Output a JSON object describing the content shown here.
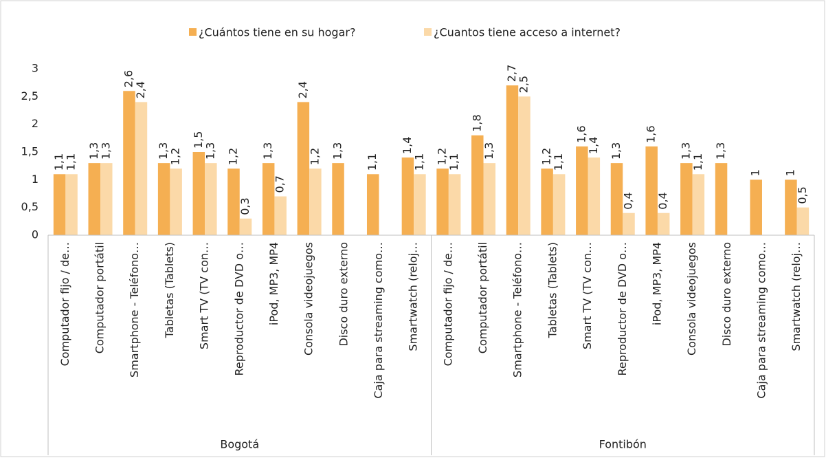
{
  "chart_data": {
    "type": "bar",
    "groups": [
      "Bogotá",
      "Fontibón"
    ],
    "categories": [
      "Computador fijo / de…",
      "Computador portátil",
      "Smartphone - Teléfono…",
      "Tabletas (Tablets)",
      "Smart TV (TV con…",
      "Reproductor de DVD o…",
      "iPod, MP3, MP4",
      "Consola videojuegos",
      "Disco duro externo",
      "Caja para streaming como…",
      "Smartwatch (reloj…",
      "Computador fijo / de…",
      "Computador portátil",
      "Smartphone - Teléfono…",
      "Tabletas (Tablets)",
      "Smart TV (TV con…",
      "Reproductor de DVD o…",
      "iPod, MP3, MP4",
      "Consola videojuegos",
      "Disco duro externo",
      "Caja para streaming como…",
      "Smartwatch (reloj…"
    ],
    "series": [
      {
        "name": "¿Cuántos tiene en su hogar?",
        "color": "#F5AF52",
        "values": [
          1.1,
          1.3,
          2.6,
          1.3,
          1.5,
          1.2,
          1.3,
          2.4,
          1.3,
          1.1,
          1.4,
          1.2,
          1.8,
          2.7,
          1.2,
          1.6,
          1.3,
          1.6,
          1.3,
          1.3,
          1,
          1
        ],
        "value_labels": [
          "1,1",
          "1,3",
          "2,6",
          "1,3",
          "1,5",
          "1,2",
          "1,3",
          "2,4",
          "1,3",
          "1,1",
          "1,4",
          "1,2",
          "1,8",
          "2,7",
          "1,2",
          "1,6",
          "1,3",
          "1,6",
          "1,3",
          "1,3",
          "1",
          "1"
        ]
      },
      {
        "name": "¿Cuantos tiene acceso a internet?",
        "color": "#FBD9A8",
        "values": [
          1.1,
          1.3,
          2.4,
          1.2,
          1.3,
          0.3,
          0.7,
          1.2,
          null,
          null,
          1.1,
          1.1,
          1.3,
          2.5,
          1.1,
          1.4,
          0.4,
          0.4,
          1.1,
          null,
          null,
          0.5
        ],
        "value_labels": [
          "1,1",
          "1,3",
          "2,4",
          "1,2",
          "1,3",
          "0,3",
          "0,7",
          "1,2",
          null,
          null,
          "1,1",
          "1,1",
          "1,3",
          "2,5",
          "1,1",
          "1,4",
          "0,4",
          "0,4",
          "1,1",
          null,
          null,
          "0,5"
        ]
      }
    ],
    "ylim": [
      0,
      3
    ],
    "yticks": [
      0,
      {
        "value": 0.5,
        "label": "0,5"
      },
      1,
      {
        "value": 1.5,
        "label": "1,5"
      },
      2,
      {
        "value": 2.5,
        "label": "2,5"
      },
      3
    ],
    "grid": false,
    "legend": "top"
  }
}
